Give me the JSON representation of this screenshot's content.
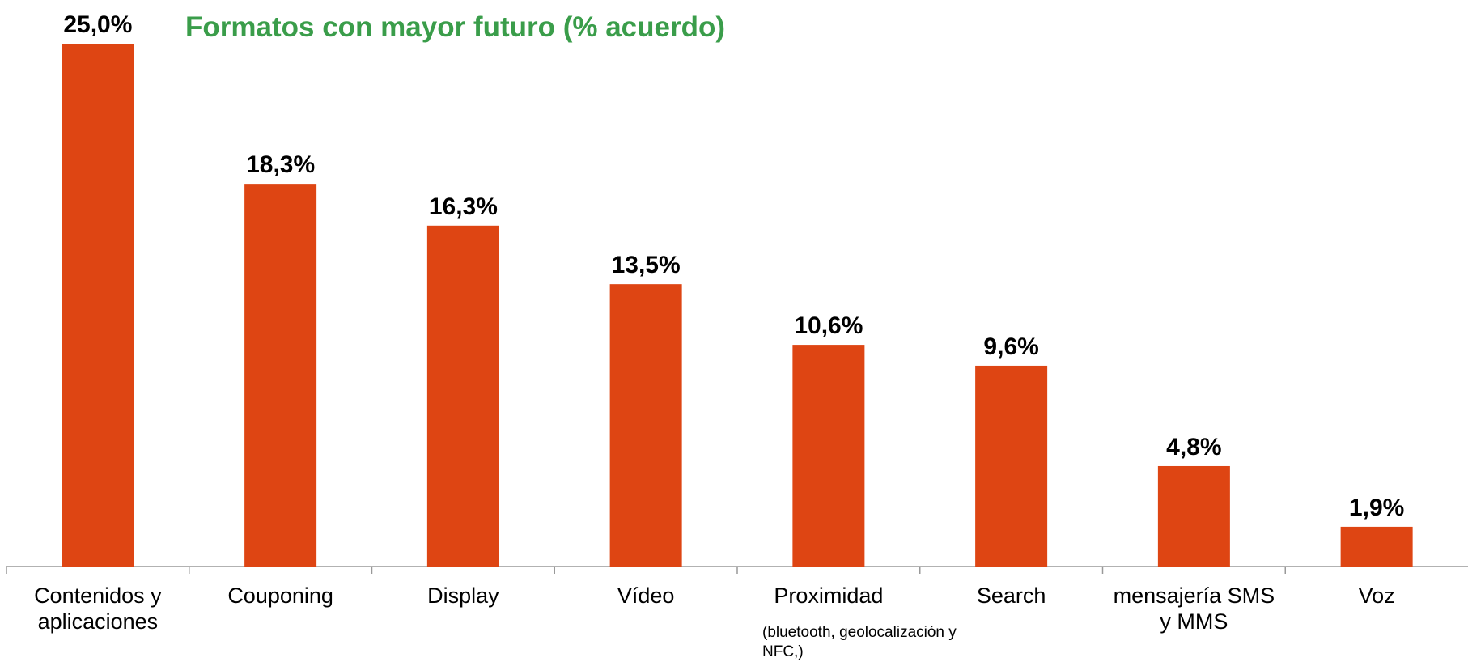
{
  "chart_data": {
    "type": "bar",
    "title": "Formatos con mayor futuro (% acuerdo)",
    "categories": [
      "Contenidos y aplicaciones",
      "Couponing",
      "Display",
      "Vídeo",
      "Proximidad",
      "Search",
      "mensajería SMS y MMS",
      "Voz"
    ],
    "values": [
      25.0,
      18.3,
      16.3,
      13.5,
      10.6,
      9.6,
      4.8,
      1.9
    ],
    "value_labels": [
      "25,0%",
      "18,3%",
      "16,3%",
      "13,5%",
      "10,6%",
      "9,6%",
      "4,8%",
      "1,9%"
    ],
    "annotations": [
      "(bluetooth, geolocalización y NFC,)"
    ],
    "color": "#de4513",
    "title_color": "#3a9d4a"
  }
}
